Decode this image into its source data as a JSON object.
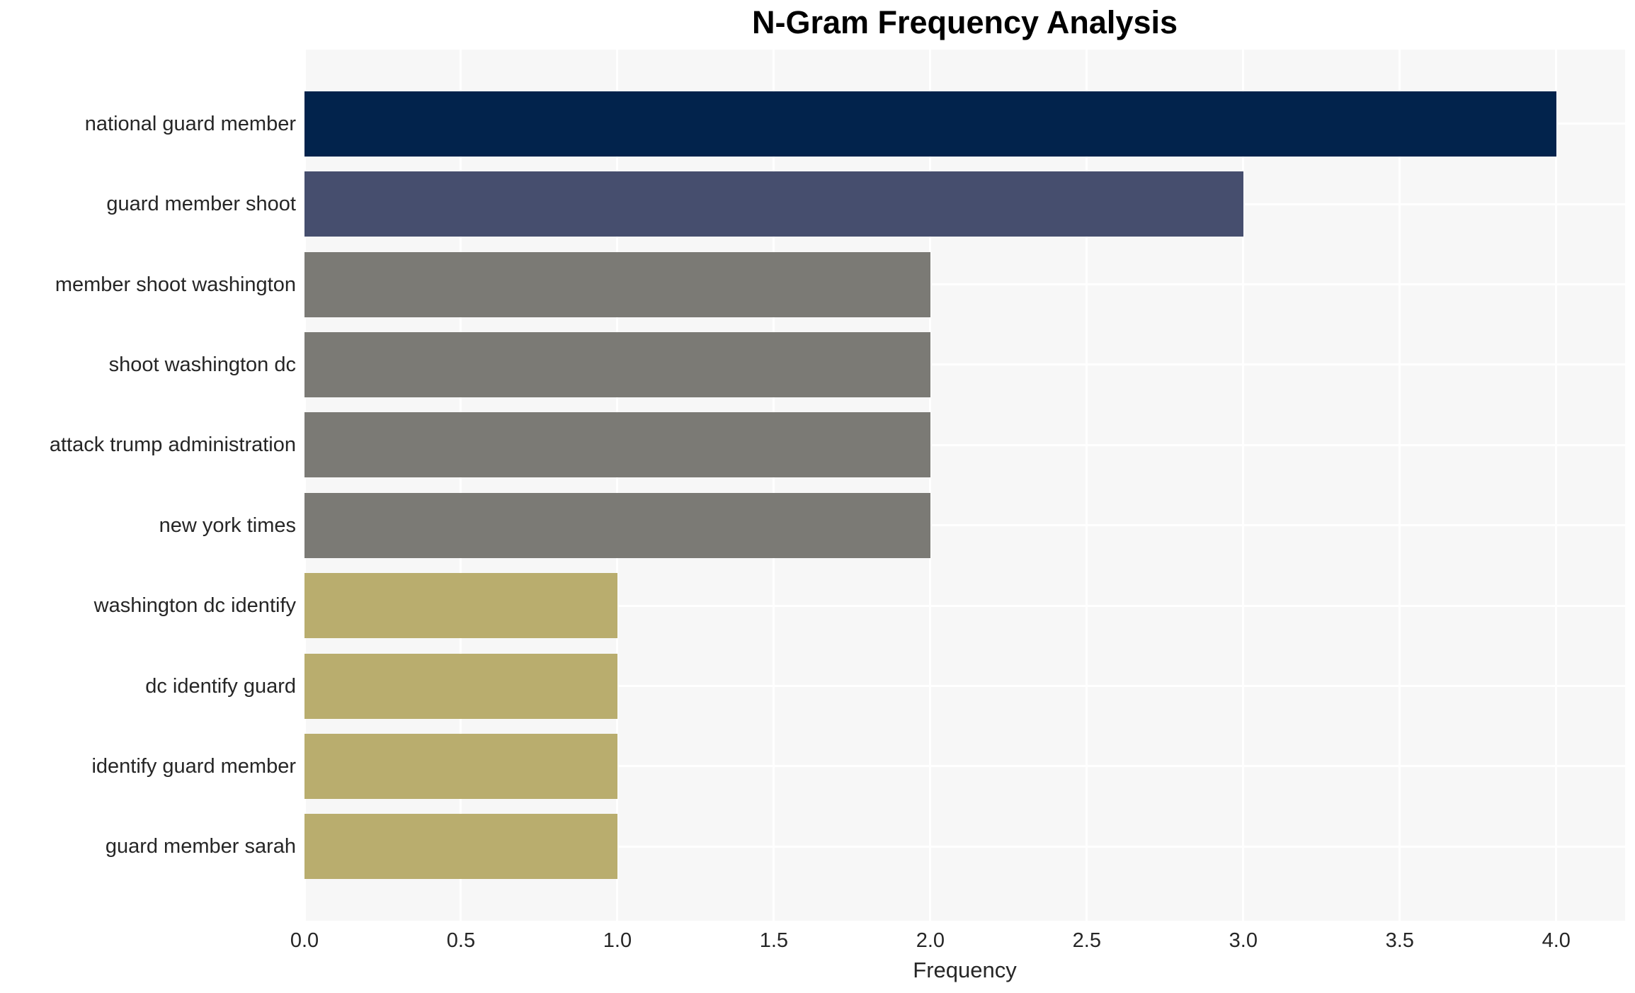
{
  "title": "N-Gram Frequency Analysis",
  "chart_data": {
    "type": "bar",
    "orientation": "horizontal",
    "title": "N-Gram Frequency Analysis",
    "xlabel": "Frequency",
    "ylabel": "",
    "categories": [
      "national guard member",
      "guard member shoot",
      "member shoot washington",
      "shoot washington dc",
      "attack trump administration",
      "new york times",
      "washington dc identify",
      "dc identify guard",
      "identify guard member",
      "guard member sarah"
    ],
    "values": [
      4,
      3,
      2,
      2,
      2,
      2,
      1,
      1,
      1,
      1
    ],
    "bar_colors": [
      "#02234c",
      "#464e6e",
      "#7b7a75",
      "#7b7a75",
      "#7b7a75",
      "#7b7a75",
      "#b9ad6e",
      "#b9ad6e",
      "#b9ad6e",
      "#b9ad6e"
    ],
    "xlim": [
      0,
      4.22
    ],
    "xticks": [
      0.0,
      0.5,
      1.0,
      1.5,
      2.0,
      2.5,
      3.0,
      3.5,
      4.0
    ],
    "xtick_labels": [
      "0.0",
      "0.5",
      "1.0",
      "1.5",
      "2.0",
      "2.5",
      "3.0",
      "3.5",
      "4.0"
    ],
    "grid": true,
    "legend": "none",
    "plot_bg_color": "#f7f7f7",
    "grid_color": "#ffffff",
    "figure_bg_color": "#ffffff",
    "tick_text_color": "#262626",
    "label_text_color": "#262626",
    "title_color": "#000000"
  }
}
